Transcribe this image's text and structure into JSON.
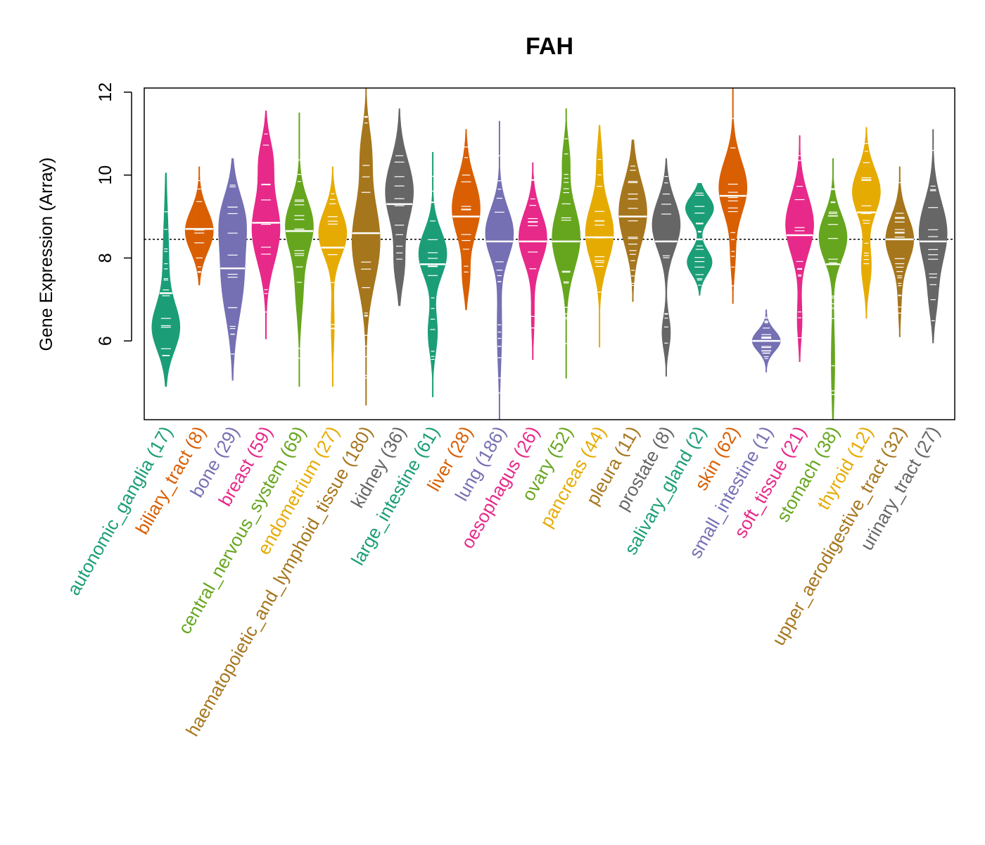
{
  "chart_data": {
    "type": "violin",
    "title": "FAH",
    "ylabel": "Gene Expression (Array)",
    "xlabel": "",
    "ylim": [
      4.1,
      12.1
    ],
    "yticks": [
      6,
      8,
      10,
      12
    ],
    "reference_line": 8.45,
    "categories": [
      {
        "name": "autonomic_ganglia",
        "count": "(17)",
        "color": "#1B9E77",
        "median": 7.15,
        "min": 4.9,
        "max": 10.05,
        "modes": [
          [
            6.3,
            0.85,
            0.55
          ],
          [
            7.8,
            0.2,
            1.2
          ]
        ]
      },
      {
        "name": "biliary_tract",
        "count": "(8)",
        "color": "#D95F02",
        "median": 8.7,
        "min": 7.35,
        "max": 10.2,
        "modes": [
          [
            8.65,
            1.0,
            0.5
          ]
        ]
      },
      {
        "name": "bone",
        "count": "(29)",
        "color": "#7570B3",
        "median": 7.75,
        "min": 5.05,
        "max": 10.4,
        "modes": [
          [
            7.6,
            0.45,
            1.0
          ],
          [
            9.0,
            0.35,
            0.6
          ]
        ]
      },
      {
        "name": "breast",
        "count": "(59)",
        "color": "#E7298A",
        "median": 8.85,
        "min": 6.05,
        "max": 11.55,
        "modes": [
          [
            8.7,
            0.7,
            0.8
          ],
          [
            10.4,
            0.3,
            0.5
          ]
        ]
      },
      {
        "name": "central_nervous_system",
        "count": "(69)",
        "color": "#66A61E",
        "median": 8.65,
        "min": 4.9,
        "max": 11.5,
        "modes": [
          [
            8.8,
            0.9,
            0.6
          ],
          [
            7.3,
            0.25,
            0.7
          ]
        ]
      },
      {
        "name": "endometrium",
        "count": "(27)",
        "color": "#E6AB02",
        "median": 8.25,
        "min": 4.9,
        "max": 10.2,
        "modes": [
          [
            8.6,
            0.9,
            0.55
          ],
          [
            6.4,
            0.1,
            0.6
          ]
        ]
      },
      {
        "name": "haematopoietic_and_lymphoid_tissue",
        "count": "(180)",
        "color": "#A6761D",
        "median": 8.6,
        "min": 4.45,
        "max": 12.1,
        "modes": [
          [
            8.4,
            0.6,
            1.0
          ],
          [
            10.6,
            0.2,
            0.6
          ]
        ]
      },
      {
        "name": "kidney",
        "count": "(36)",
        "color": "#666666",
        "median": 9.3,
        "min": 6.85,
        "max": 11.6,
        "modes": [
          [
            9.6,
            0.9,
            0.75
          ],
          [
            7.8,
            0.3,
            0.5
          ]
        ]
      },
      {
        "name": "large_intestine",
        "count": "(61)",
        "color": "#1B9E77",
        "median": 7.85,
        "min": 4.65,
        "max": 10.55,
        "modes": [
          [
            8.1,
            0.9,
            0.55
          ],
          [
            6.2,
            0.3,
            0.5
          ]
        ]
      },
      {
        "name": "liver",
        "count": "(28)",
        "color": "#D95F02",
        "median": 9.0,
        "min": 6.75,
        "max": 11.1,
        "modes": [
          [
            9.2,
            0.9,
            0.7
          ],
          [
            7.5,
            0.2,
            0.4
          ]
        ]
      },
      {
        "name": "lung",
        "count": "(186)",
        "color": "#7570B3",
        "median": 8.4,
        "min": 4.1,
        "max": 11.3,
        "modes": [
          [
            8.6,
            0.9,
            0.6
          ],
          [
            6.3,
            0.15,
            0.9
          ]
        ]
      },
      {
        "name": "oesophagus",
        "count": "(26)",
        "color": "#E7298A",
        "median": 8.4,
        "min": 5.55,
        "max": 10.3,
        "modes": [
          [
            8.5,
            1.0,
            0.6
          ],
          [
            6.6,
            0.1,
            0.5
          ]
        ]
      },
      {
        "name": "ovary",
        "count": "(52)",
        "color": "#66A61E",
        "median": 8.4,
        "min": 5.1,
        "max": 11.6,
        "modes": [
          [
            8.5,
            0.85,
            0.75
          ],
          [
            10.4,
            0.2,
            0.45
          ]
        ]
      },
      {
        "name": "pancreas",
        "count": "(44)",
        "color": "#E6AB02",
        "median": 8.5,
        "min": 5.85,
        "max": 11.2,
        "modes": [
          [
            8.6,
            0.9,
            0.7
          ],
          [
            10.4,
            0.15,
            0.45
          ]
        ]
      },
      {
        "name": "pleura",
        "count": "(11)",
        "color": "#A6761D",
        "median": 9.0,
        "min": 6.95,
        "max": 10.85,
        "modes": [
          [
            9.1,
            1.0,
            0.75
          ]
        ]
      },
      {
        "name": "prostate",
        "count": "(8)",
        "color": "#666666",
        "median": 8.4,
        "min": 5.15,
        "max": 10.4,
        "modes": [
          [
            8.8,
            1.0,
            0.6
          ],
          [
            6.2,
            0.3,
            0.4
          ]
        ]
      },
      {
        "name": "salivary_gland",
        "count": "(2)",
        "color": "#1B9E77",
        "median": 8.45,
        "min": 7.1,
        "max": 9.8,
        "modes": [
          [
            9.2,
            0.45,
            0.3
          ],
          [
            7.9,
            0.4,
            0.3
          ]
        ]
      },
      {
        "name": "skin",
        "count": "(62)",
        "color": "#D95F02",
        "median": 9.5,
        "min": 6.9,
        "max": 12.1,
        "modes": [
          [
            9.7,
            1.0,
            0.65
          ],
          [
            8.0,
            0.15,
            0.45
          ]
        ]
      },
      {
        "name": "small_intestine",
        "count": "(1)",
        "color": "#7570B3",
        "median": 6.0,
        "min": 5.25,
        "max": 6.75,
        "modes": [
          [
            6.0,
            0.35,
            0.25
          ]
        ]
      },
      {
        "name": "soft_tissue",
        "count": "(21)",
        "color": "#E7298A",
        "median": 8.55,
        "min": 5.5,
        "max": 10.95,
        "modes": [
          [
            8.8,
            0.9,
            0.7
          ],
          [
            6.5,
            0.15,
            0.5
          ]
        ]
      },
      {
        "name": "stomach",
        "count": "(38)",
        "color": "#66A61E",
        "median": 7.85,
        "min": 4.1,
        "max": 10.4,
        "modes": [
          [
            8.5,
            0.8,
            0.55
          ],
          [
            5.5,
            0.1,
            0.9
          ]
        ]
      },
      {
        "name": "thyroid",
        "count": "(12)",
        "color": "#E6AB02",
        "median": 9.1,
        "min": 6.55,
        "max": 11.15,
        "modes": [
          [
            9.6,
            1.0,
            0.55
          ],
          [
            7.8,
            0.35,
            0.5
          ]
        ]
      },
      {
        "name": "upper_aerodigestive_tract",
        "count": "(32)",
        "color": "#A6761D",
        "median": 8.45,
        "min": 6.1,
        "max": 10.2,
        "modes": [
          [
            8.45,
            1.0,
            0.55
          ],
          [
            7.0,
            0.1,
            0.5
          ]
        ]
      },
      {
        "name": "urinary_tract",
        "count": "(27)",
        "color": "#666666",
        "median": 8.4,
        "min": 5.95,
        "max": 11.1,
        "modes": [
          [
            8.6,
            0.85,
            0.75
          ],
          [
            7.0,
            0.2,
            0.5
          ]
        ]
      }
    ]
  }
}
